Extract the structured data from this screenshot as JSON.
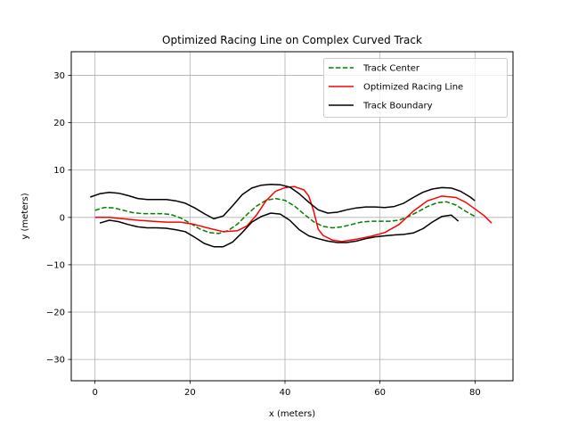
{
  "chart_data": {
    "type": "line",
    "title": "Optimized Racing Line on Complex Curved Track",
    "xlabel": "x (meters)",
    "ylabel": "y (meters)",
    "xlim": [
      -5,
      88
    ],
    "ylim": [
      -34.5,
      35
    ],
    "xticks": [
      0,
      20,
      40,
      60,
      80
    ],
    "yticks": [
      -30,
      -20,
      -10,
      0,
      10,
      20,
      30
    ],
    "xtick_labels": [
      "0",
      "20",
      "40",
      "60",
      "80"
    ],
    "ytick_labels": [
      "−30",
      "−20",
      "−10",
      "0",
      "10",
      "20",
      "30"
    ],
    "grid": true,
    "legend_position": "top-right",
    "series": [
      {
        "name": "Track Center",
        "color": "#008000",
        "style": "dashed",
        "x": [
          0,
          2,
          4,
          6,
          8,
          10,
          12,
          14,
          16,
          18,
          20,
          22,
          24,
          26,
          28,
          30,
          32,
          34,
          36,
          38,
          40,
          42,
          44,
          46,
          48,
          50,
          52,
          54,
          56,
          58,
          60,
          62,
          64,
          66,
          68,
          70,
          72,
          74,
          76,
          78,
          80
        ],
        "y": [
          1.5,
          2.1,
          2.0,
          1.5,
          1.0,
          0.8,
          0.8,
          0.8,
          0.6,
          -0.1,
          -1.2,
          -2.4,
          -3.2,
          -3.4,
          -2.8,
          -1.4,
          0.6,
          2.4,
          3.6,
          4.0,
          3.6,
          2.4,
          0.7,
          -0.9,
          -1.9,
          -2.2,
          -2.0,
          -1.5,
          -1.0,
          -0.8,
          -0.8,
          -0.8,
          -0.6,
          0.2,
          1.2,
          2.3,
          3.1,
          3.3,
          2.6,
          1.3,
          0.2
        ]
      },
      {
        "name": "Optimized Racing Line",
        "color": "#ff0000",
        "style": "solid",
        "x": [
          0,
          3,
          6,
          9,
          12,
          15,
          18,
          21,
          24,
          27,
          30,
          32,
          34,
          36,
          38,
          40,
          42,
          44,
          45,
          46,
          47,
          48,
          50,
          52,
          55,
          58,
          61,
          64,
          67,
          70,
          73,
          76,
          78,
          80,
          82,
          83.5
        ],
        "y": [
          0.0,
          0.0,
          -0.3,
          -0.6,
          -0.8,
          -1.0,
          -1.0,
          -1.5,
          -2.3,
          -3.0,
          -2.8,
          -1.8,
          0.5,
          3.5,
          5.5,
          6.3,
          6.5,
          5.8,
          4.5,
          1.5,
          -2.5,
          -3.8,
          -4.8,
          -5.1,
          -4.6,
          -4.0,
          -3.2,
          -1.5,
          1.3,
          3.5,
          4.5,
          4.2,
          3.2,
          1.8,
          0.3,
          -1.2
        ]
      },
      {
        "name": "Track Boundary",
        "color": "#000000",
        "style": "solid",
        "x": [
          -1,
          1,
          3,
          5,
          7,
          9,
          11,
          13,
          15,
          17,
          19,
          21,
          23,
          25,
          27,
          29,
          31,
          33,
          35,
          37,
          39,
          41,
          43,
          45,
          47,
          49,
          51,
          53,
          55,
          57,
          59,
          61,
          63,
          65,
          67,
          69,
          71,
          73,
          75,
          77,
          79,
          80
        ],
        "y": [
          4.3,
          5.0,
          5.3,
          5.1,
          4.6,
          4.0,
          3.8,
          3.8,
          3.8,
          3.5,
          3.0,
          2.0,
          0.8,
          -0.3,
          0.3,
          2.5,
          4.8,
          6.2,
          6.8,
          7.0,
          6.9,
          6.4,
          5.0,
          3.2,
          1.6,
          0.9,
          1.1,
          1.6,
          2.0,
          2.2,
          2.2,
          2.1,
          2.3,
          3.0,
          4.2,
          5.3,
          6.0,
          6.3,
          6.2,
          5.5,
          4.3,
          3.5
        ]
      },
      {
        "name": "",
        "color": "#000000",
        "style": "solid",
        "x": [
          1,
          3,
          5,
          7,
          9,
          11,
          13,
          15,
          17,
          19,
          21,
          23,
          25,
          27,
          29,
          31,
          33,
          35,
          37,
          39,
          41,
          43,
          45,
          47,
          49,
          51,
          53,
          55,
          57,
          59,
          61,
          63,
          65,
          67,
          69,
          71,
          73,
          75,
          76.5
        ],
        "y": [
          -1.2,
          -0.6,
          -0.9,
          -1.5,
          -2.0,
          -2.2,
          -2.2,
          -2.3,
          -2.6,
          -3.0,
          -4.2,
          -5.5,
          -6.2,
          -6.2,
          -5.2,
          -3.2,
          -1.0,
          0.2,
          0.9,
          0.7,
          -0.6,
          -2.6,
          -3.9,
          -4.5,
          -5.0,
          -5.3,
          -5.3,
          -5.0,
          -4.5,
          -4.1,
          -3.9,
          -3.7,
          -3.6,
          -3.3,
          -2.4,
          -1.0,
          0.2,
          0.5,
          -0.8
        ]
      }
    ]
  }
}
